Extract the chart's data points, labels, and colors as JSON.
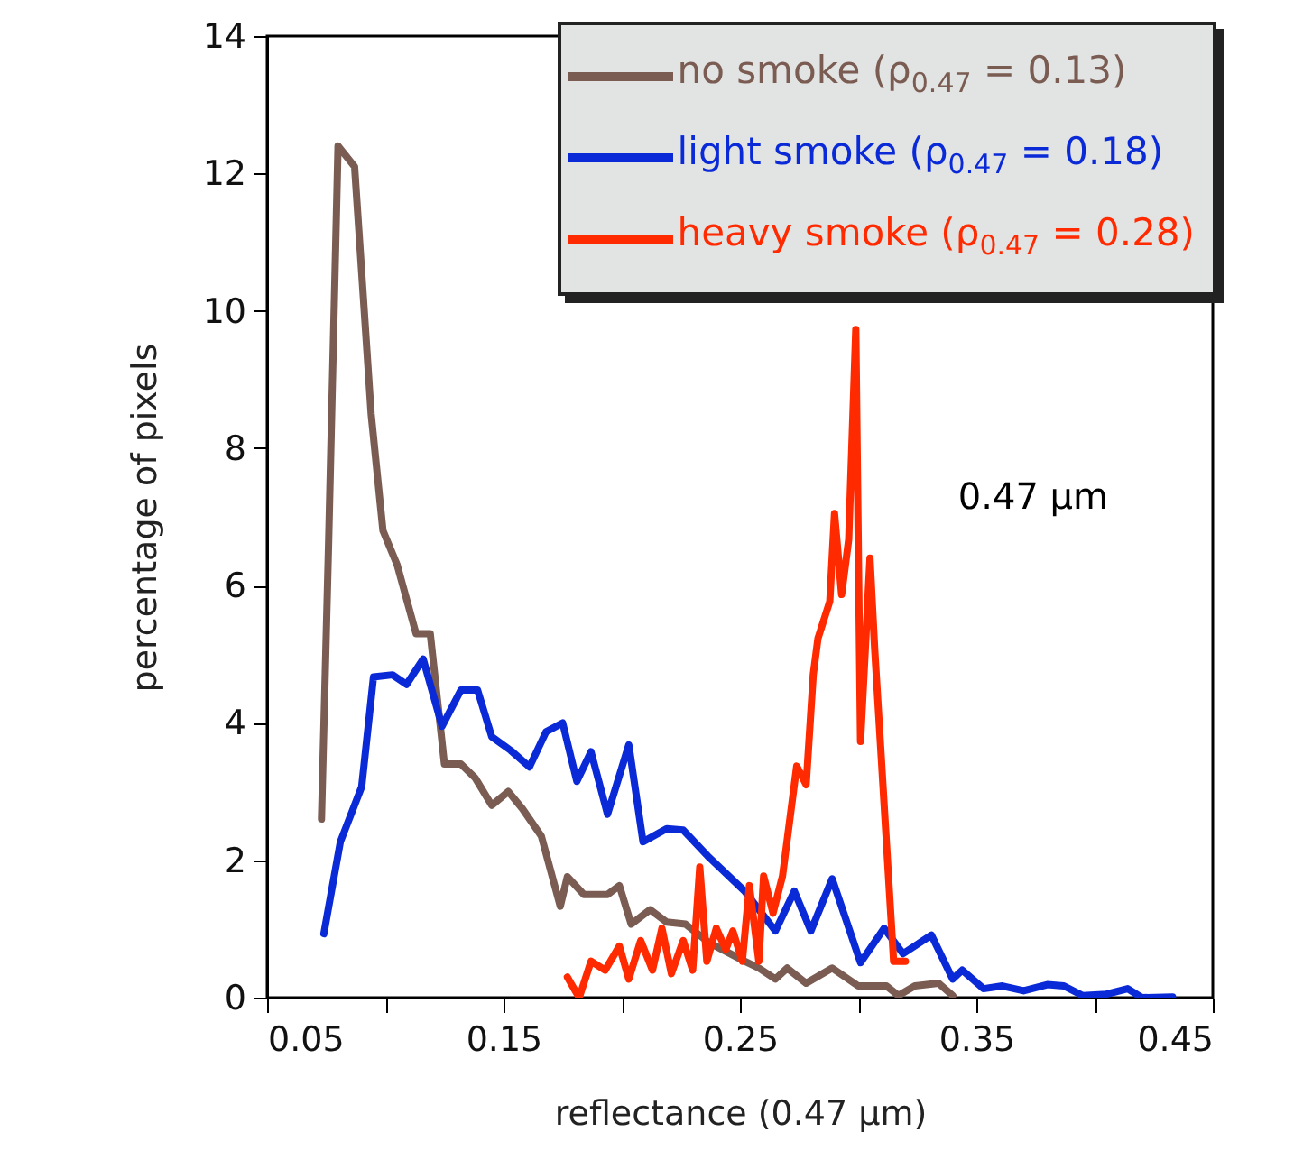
{
  "chart_data": {
    "type": "line",
    "xlabel": "reflectance (0.47 μm)",
    "ylabel": "percentage of pixels",
    "xlim": [
      0.05,
      0.45
    ],
    "ylim": [
      0,
      14
    ],
    "xticks": [
      0.05,
      {
        "value": 0.1,
        "label": null
      },
      0.15,
      {
        "value": 0.2,
        "label": null
      },
      0.25,
      {
        "value": 0.3,
        "label": null
      },
      0.35,
      {
        "value": 0.4,
        "label": null
      },
      0.45
    ],
    "yticks": [
      0,
      2,
      4,
      6,
      8,
      10,
      12,
      14
    ],
    "legend": "top right",
    "annotations": [
      "0.47 μm"
    ],
    "series": [
      {
        "name": "no smoke (ρ$_{0.47}$ = 0.13)",
        "color": "#7a5c52",
        "x": [
          0.073,
          0.076,
          0.08,
          0.087,
          0.094,
          0.099,
          0.105,
          0.113,
          0.119,
          0.125,
          0.132,
          0.138,
          0.145,
          0.152,
          0.158,
          0.166,
          0.174,
          0.177,
          0.184,
          0.194,
          0.199,
          0.204,
          0.212,
          0.219,
          0.227,
          0.237,
          0.252,
          0.258,
          0.265,
          0.27,
          0.278,
          0.289,
          0.3,
          0.312,
          0.317,
          0.324,
          0.334,
          0.34
        ],
        "values": [
          2.6,
          6.6,
          12.4,
          12.1,
          8.5,
          6.8,
          6.3,
          5.3,
          5.3,
          3.4,
          3.4,
          3.2,
          2.8,
          3.0,
          2.75,
          2.35,
          1.33,
          1.76,
          1.5,
          1.5,
          1.63,
          1.07,
          1.28,
          1.1,
          1.07,
          0.8,
          0.53,
          0.43,
          0.27,
          0.43,
          0.21,
          0.43,
          0.17,
          0.17,
          0.03,
          0.17,
          0.21,
          0.03
        ]
      },
      {
        "name": "light smoke (ρ$_{0.47}$ = 0.18)",
        "color": "#0a2ad8",
        "x": [
          0.074,
          0.081,
          0.09,
          0.095,
          0.103,
          0.109,
          0.116,
          0.124,
          0.132,
          0.139,
          0.145,
          0.153,
          0.161,
          0.168,
          0.175,
          0.181,
          0.187,
          0.194,
          0.203,
          0.209,
          0.219,
          0.226,
          0.237,
          0.252,
          0.265,
          0.273,
          0.28,
          0.289,
          0.301,
          0.311,
          0.319,
          0.331,
          0.34,
          0.344,
          0.353,
          0.361,
          0.37,
          0.38,
          0.387,
          0.395,
          0.405,
          0.414,
          0.42,
          0.433
        ],
        "values": [
          0.93,
          2.27,
          3.07,
          4.67,
          4.7,
          4.56,
          4.93,
          3.95,
          4.48,
          4.48,
          3.8,
          3.6,
          3.36,
          3.87,
          4.0,
          3.15,
          3.58,
          2.67,
          3.68,
          2.27,
          2.46,
          2.44,
          2.04,
          1.55,
          0.97,
          1.55,
          0.97,
          1.73,
          0.51,
          1.01,
          0.64,
          0.91,
          0.27,
          0.4,
          0.13,
          0.17,
          0.1,
          0.19,
          0.17,
          0.03,
          0.05,
          0.13,
          0,
          0.01
        ]
      },
      {
        "name": "heavy smoke (ρ$_{0.47}$ = 0.28)",
        "color": "#ff2a00",
        "x": [
          0.177,
          0.182,
          0.187,
          0.193,
          0.199,
          0.203,
          0.208,
          0.213,
          0.217,
          0.221,
          0.226,
          0.23,
          0.233,
          0.236,
          0.24,
          0.244,
          0.247,
          0.251,
          0.254,
          0.258,
          0.26,
          0.264,
          0.268,
          0.274,
          0.278,
          0.281,
          0.283,
          0.288,
          0.29,
          0.293,
          0.296,
          0.299,
          0.301,
          0.305,
          0.307,
          0.315,
          0.32
        ],
        "values": [
          0.3,
          0,
          0.53,
          0.4,
          0.75,
          0.27,
          0.83,
          0.4,
          1.01,
          0.35,
          0.83,
          0.4,
          1.9,
          0.53,
          1.01,
          0.7,
          0.97,
          0.53,
          1.63,
          0.53,
          1.77,
          1.23,
          1.77,
          3.37,
          3.1,
          4.7,
          5.23,
          5.77,
          7.05,
          5.87,
          6.67,
          9.73,
          3.73,
          6.4,
          5.07,
          0.53,
          0.53
        ]
      }
    ]
  }
}
